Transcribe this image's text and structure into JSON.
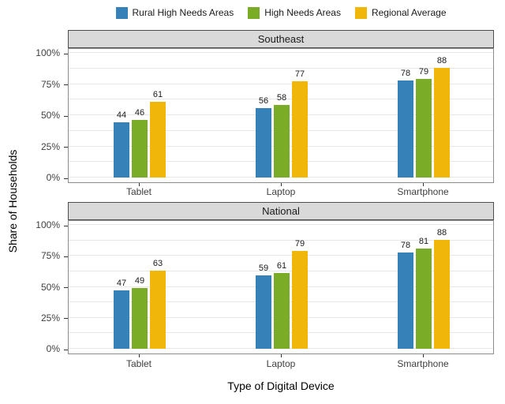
{
  "figure": {
    "description": "Faceted grouped bar chart comparing household device access"
  },
  "legend": {
    "items": [
      {
        "label": "Rural High Needs Areas",
        "color": "#3581B8"
      },
      {
        "label": "High Needs Areas",
        "color": "#7BAC27"
      },
      {
        "label": "Regional Average",
        "color": "#F1B60A"
      }
    ]
  },
  "chart_data": {
    "type": "bar",
    "xlabel": "Type of Digital Device",
    "ylabel": "Share of Households",
    "ylim": [
      0,
      100
    ],
    "y_ticks": [
      {
        "label": "0%",
        "value": 0
      },
      {
        "label": "25%",
        "value": 25
      },
      {
        "label": "50%",
        "value": 50
      },
      {
        "label": "75%",
        "value": 75
      },
      {
        "label": "100%",
        "value": 100
      }
    ],
    "grid": {
      "horizontal": true,
      "minor_step": 12.5,
      "color": "#e6e6e6"
    },
    "legend_position": "top",
    "bar_colors": [
      "#3581B8",
      "#7BAC27",
      "#F1B60A"
    ],
    "strip_fill": "#d9d9d9",
    "facets": [
      {
        "title": "Southeast",
        "categories": [
          "Tablet",
          "Laptop",
          "Smartphone"
        ],
        "series": [
          {
            "name": "Rural High Needs Areas",
            "values": [
              44,
              56,
              78
            ]
          },
          {
            "name": "High Needs Areas",
            "values": [
              46,
              58,
              79
            ]
          },
          {
            "name": "Regional Average",
            "values": [
              61,
              77,
              88
            ]
          }
        ]
      },
      {
        "title": "National",
        "categories": [
          "Tablet",
          "Laptop",
          "Smartphone"
        ],
        "series": [
          {
            "name": "Rural High Needs Areas",
            "values": [
              47,
              59,
              78
            ]
          },
          {
            "name": "High Needs Areas",
            "values": [
              49,
              61,
              81
            ]
          },
          {
            "name": "Regional Average",
            "values": [
              63,
              79,
              88
            ]
          }
        ]
      }
    ]
  }
}
